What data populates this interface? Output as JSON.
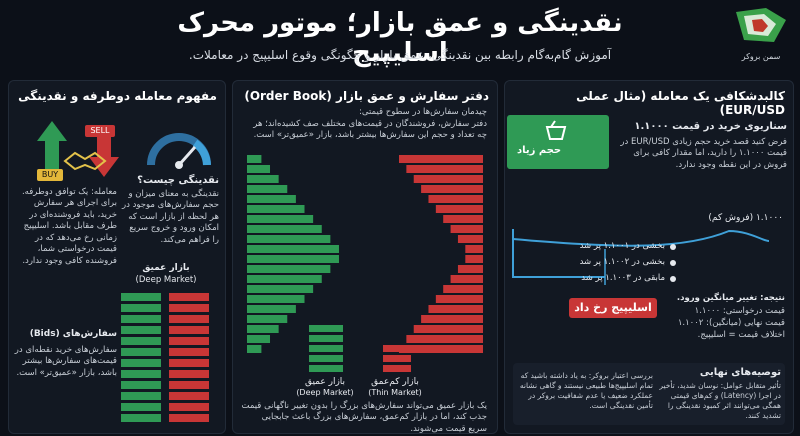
{
  "title": "نقدینگی و عمق بازار؛ موتور محرک اسلیپیج",
  "subtitle": "آموزش گام‌به‌گام رابطه بین نقدینگی، عمق بازار و چگونگی وقوع اسلیپیج در معاملات.",
  "logo_text": "سمن بروکر",
  "left": {
    "title": "مفهوم معامله دوطرفه و نقدینگی",
    "sell_tag": "SELL",
    "buy_tag": "BUY",
    "liq_q": "نقدینگی چیست؟",
    "liq_def": "نقدینگی به معنای میزان و حجم سفارش‌های موجود در هر لحظه از بازار است که امکان ورود و خروج سریع را فراهم می‌کند.",
    "trade_def": "معامله: یک توافق دوطرفه. برای اجرای هر سفارش خرید، باید فروشنده‌ای در طرف مقابل باشد. اسلیپیج زمانی رخ می‌دهد که در قیمت درخواستی شما، فروشنده کافی وجود ندارد.",
    "deep_title": "بازار عمیق",
    "deep_title_en": "(Deep Market)",
    "bids_title": "سفارش‌های (Bids)",
    "bids_desc": "سفارش‌های خرید نقطه‌ای در قیمت‌های سفارش‌ها بیشتر باشد، بازار «عمیق‌تر» است."
  },
  "mid": {
    "title": "دفتر سفارش و عمق بازار (Order Book)",
    "intro_1": "چیدمان سفارش‌ها در سطوح قیمتی:",
    "intro_2": "دفتر سفارش، فروشندگان در قیمت‌های مختلف صف کشیده‌اند؛ هر چه تعداد و حجم این سفارش‌ها بیشتر باشد، بازار «عمیق‌تر» است.",
    "deep_label": "بازار عمیق",
    "deep_label_en": "(Deep Market)",
    "thin_label": "بازار کم‌عمق",
    "thin_label_en": "(Thin Market)",
    "bottom_note": "یک بازار عمیق می‌تواند سفارش‌های بزرگ را بدون تغییر ناگهانی قیمت جذب کند، اما در بازار کم‌عمق، سفارش‌های بزرگ باعث جابجایی سریع قیمت می‌شوند."
  },
  "right": {
    "title": "کالبدشکافی یک معامله (مثال عملی EUR/USD)",
    "scenario_title": "سناریوی خرید در قیمت ۱.۱۰۰۰",
    "scenario_desc": "فرض کنید قصد خرید حجم زیادی EUR/USD در قیمت ۱.۱۰۰۰ را دارید، اما مقدار کافی برای فروش در این نقطه وجود ندارد.",
    "buy_label": "حجم زیاد",
    "price_low": "۱.۱۰۰۰ (فروش کم)",
    "fill_1": "بخشی در ۱.۱۰۰۱ پر شد",
    "fill_2": "بخشی در ۱.۱۰۰۲ پر شد",
    "fill_3": "مابقی در ۱.۱۰۰۳ پر شد",
    "result_title": "نتیجه: تغییر میانگین ورود.",
    "result_l1": "قیمت درخواستی: ۱.۱۰۰۰",
    "result_l2": "قیمت نهایی (میانگین): ۱.۱۰۰۲",
    "result_l3": "اختلاف قیمت = اسلیپیج.",
    "slippage_label": "اسلیپیج رخ داد",
    "rec_title": "توصیه‌های نهایی",
    "rec_a": "تأثیر متقابل عوامل: نوسان شدید، تأخیر در اجرا (Latency) و کم‌های قیمتی همگی می‌توانند اثر کمبود نقدینگی را تشدید کنند.",
    "rec_b": "بررسی اعتبار بروکر: به یاد داشته باشید که تمام اسلیپیج‌ها طبیعی نیستند و گاهی نشانه عملکرد ضعیف یا عدم شفافیت بروکر در تأمین نقدینگی است."
  },
  "colors": {
    "green": "#2f9a55",
    "red": "#c83636",
    "bg": "#0c1018"
  }
}
